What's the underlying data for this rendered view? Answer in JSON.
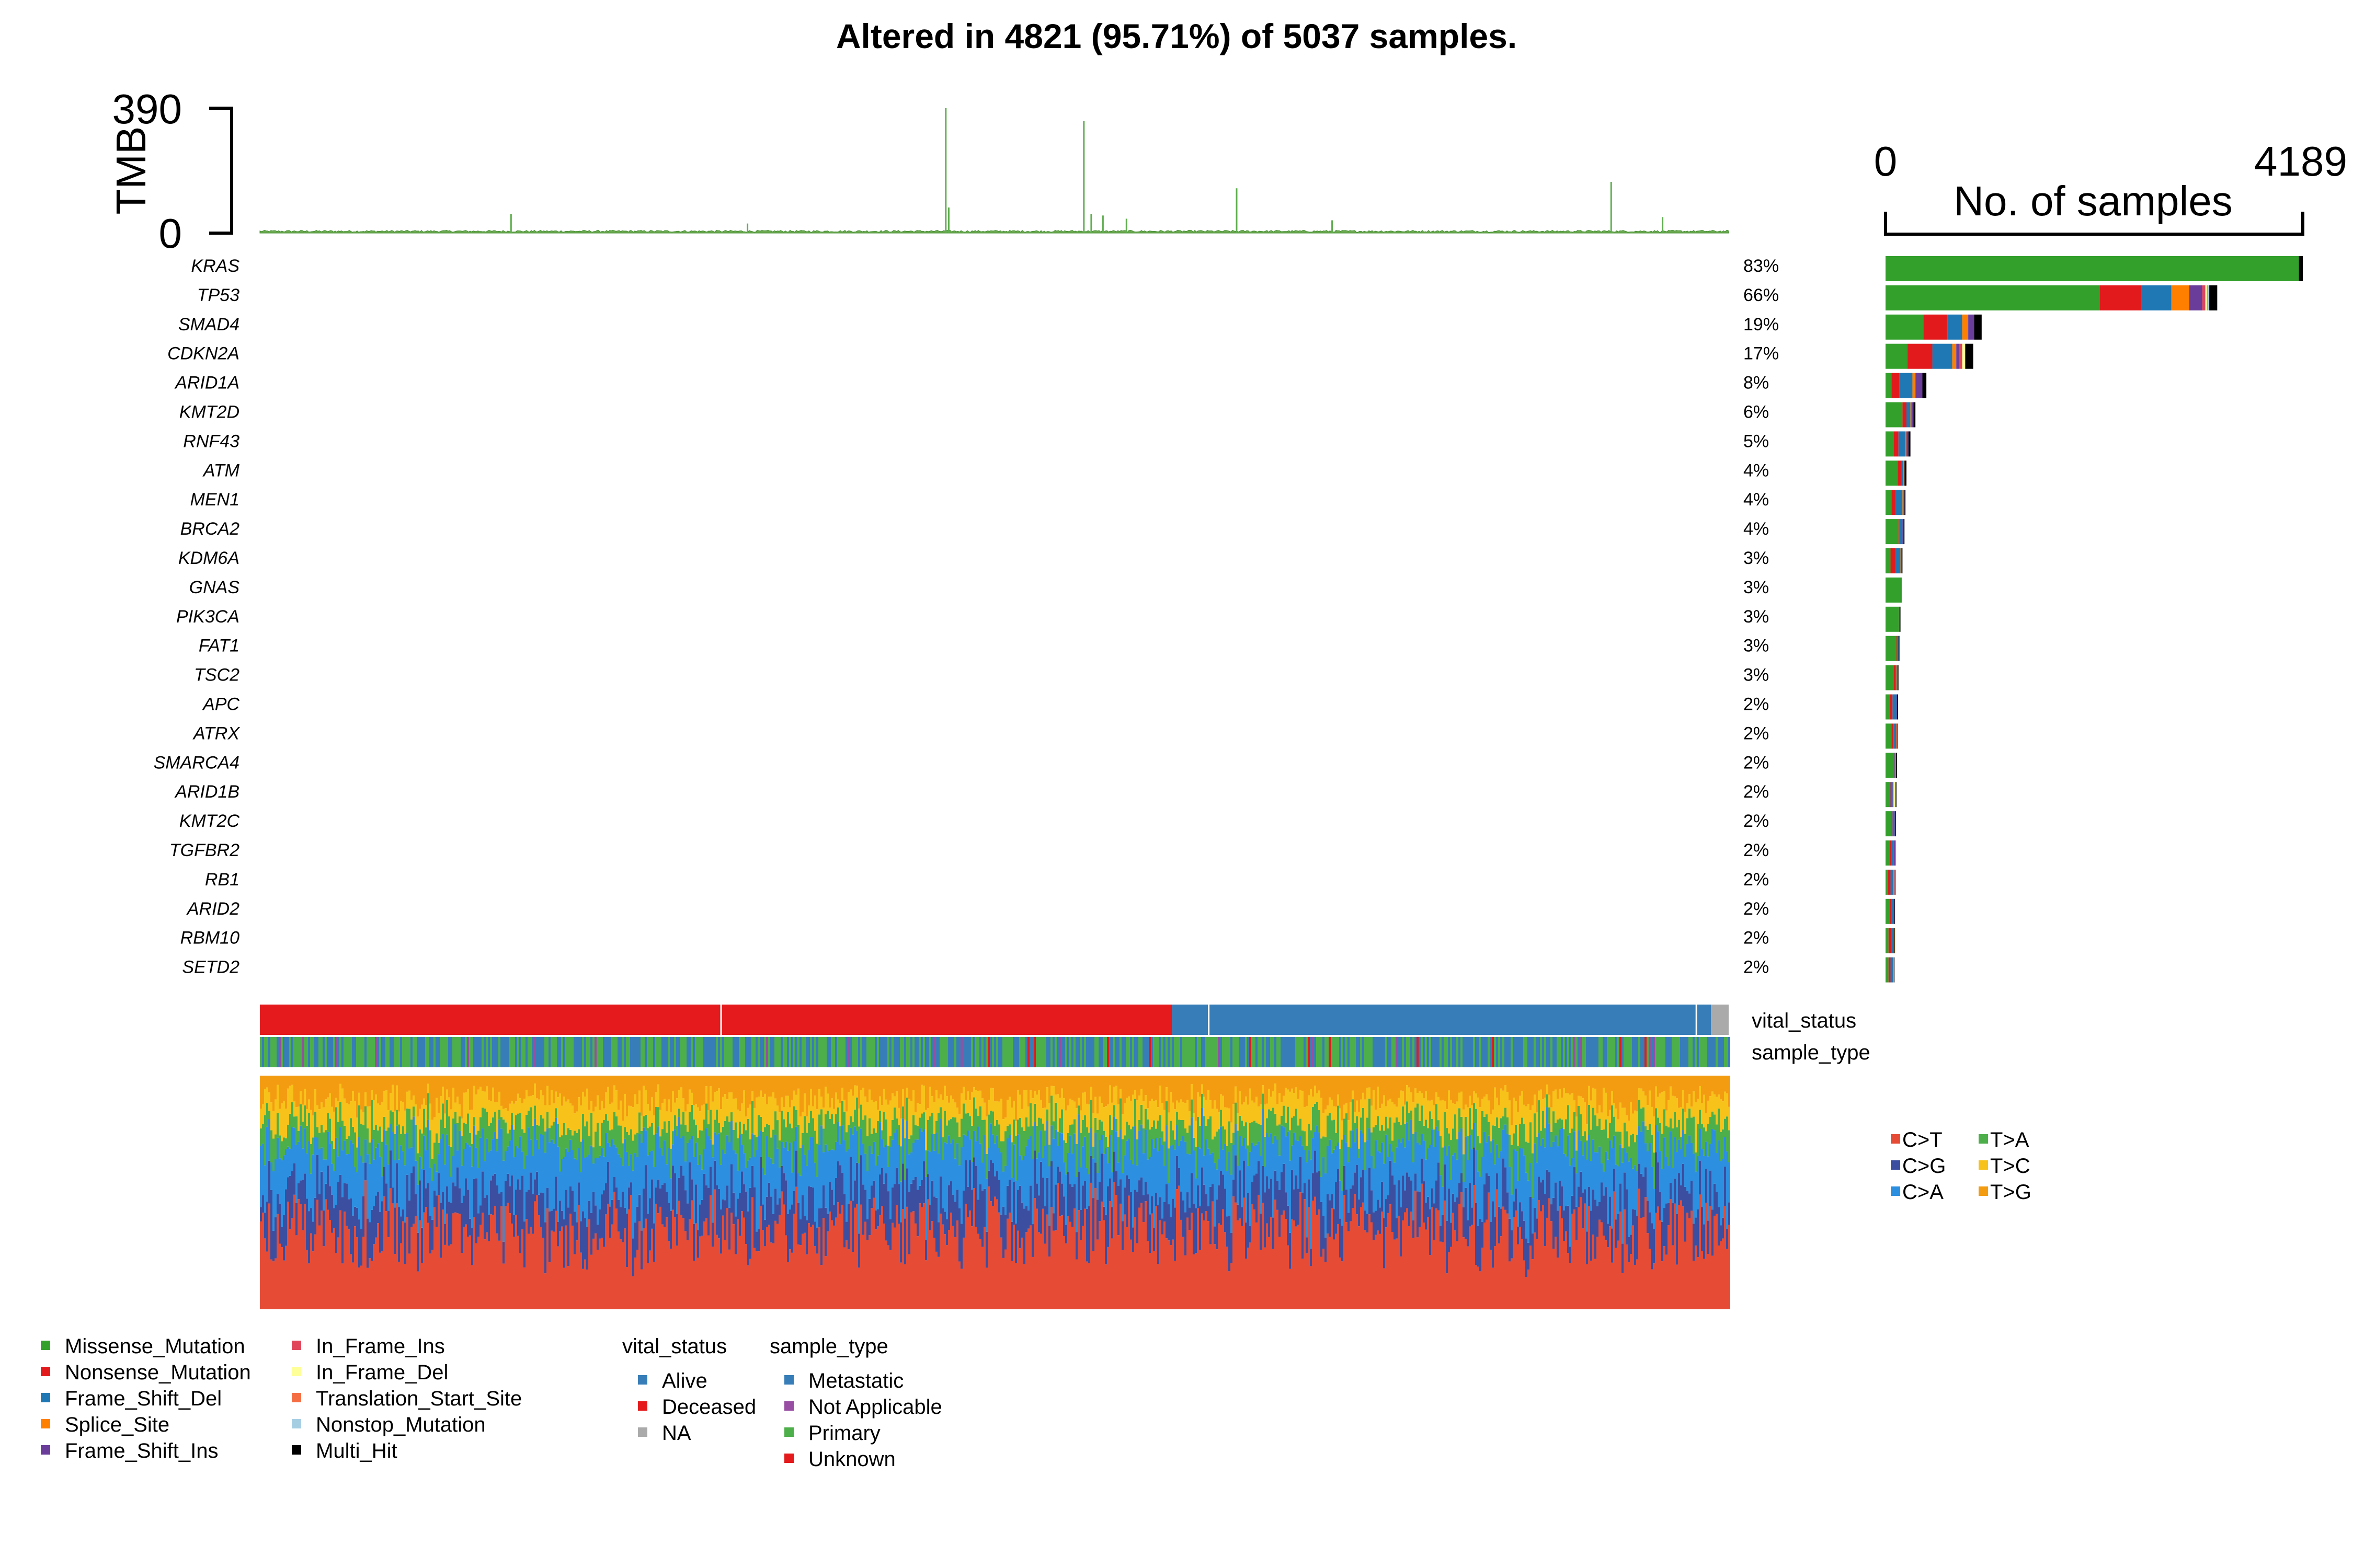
{
  "chart_data": {
    "type": "oncoplot",
    "title": "Altered in 4821 (95.71%) of 5037 samples.",
    "tmb_axis": {
      "label": "TMB",
      "min": 0,
      "max": 390,
      "tick_labels": [
        "0",
        "390"
      ]
    },
    "bar_axis": {
      "label": "No. of samples",
      "min": 0,
      "max": 4189,
      "tick_labels": [
        "0",
        "4189"
      ]
    },
    "genes": [
      {
        "name": "KRAS",
        "pct": "83%",
        "total": 4189,
        "counts": [
          4150,
          0,
          0,
          0,
          0,
          0,
          0,
          0,
          0,
          39
        ]
      },
      {
        "name": "TP53",
        "pct": "66%",
        "total": 3330,
        "counts": [
          2150,
          420,
          300,
          180,
          130,
          30,
          20,
          10,
          10,
          80
        ]
      },
      {
        "name": "SMAD4",
        "pct": "19%",
        "total": 965,
        "counts": [
          380,
          240,
          150,
          60,
          60,
          0,
          0,
          0,
          0,
          75
        ]
      },
      {
        "name": "CDKN2A",
        "pct": "17%",
        "total": 880,
        "counts": [
          220,
          250,
          200,
          40,
          30,
          30,
          30,
          0,
          0,
          80
        ]
      },
      {
        "name": "ARID1A",
        "pct": "8%",
        "total": 410,
        "counts": [
          60,
          80,
          130,
          30,
          70,
          0,
          0,
          0,
          0,
          40
        ]
      },
      {
        "name": "KMT2D",
        "pct": "6%",
        "total": 300,
        "counts": [
          170,
          40,
          40,
          10,
          20,
          0,
          0,
          0,
          0,
          20
        ]
      },
      {
        "name": "RNF43",
        "pct": "5%",
        "total": 250,
        "counts": [
          80,
          50,
          70,
          10,
          20,
          0,
          0,
          0,
          0,
          20
        ]
      },
      {
        "name": "ATM",
        "pct": "4%",
        "total": 210,
        "counts": [
          120,
          40,
          20,
          10,
          0,
          0,
          0,
          0,
          0,
          20
        ]
      },
      {
        "name": "MEN1",
        "pct": "4%",
        "total": 200,
        "counts": [
          60,
          40,
          70,
          10,
          10,
          0,
          0,
          0,
          0,
          10
        ]
      },
      {
        "name": "BRCA2",
        "pct": "4%",
        "total": 190,
        "counts": [
          130,
          10,
          30,
          0,
          10,
          0,
          0,
          0,
          0,
          10
        ]
      },
      {
        "name": "KDM6A",
        "pct": "3%",
        "total": 170,
        "counts": [
          50,
          50,
          50,
          10,
          0,
          0,
          0,
          0,
          0,
          10
        ]
      },
      {
        "name": "GNAS",
        "pct": "3%",
        "total": 160,
        "counts": [
          155,
          0,
          0,
          0,
          0,
          0,
          0,
          0,
          0,
          5
        ]
      },
      {
        "name": "PIK3CA",
        "pct": "3%",
        "total": 150,
        "counts": [
          135,
          0,
          0,
          0,
          0,
          5,
          0,
          0,
          0,
          10
        ]
      },
      {
        "name": "FAT1",
        "pct": "3%",
        "total": 140,
        "counts": [
          110,
          10,
          10,
          0,
          0,
          0,
          0,
          0,
          0,
          10
        ]
      },
      {
        "name": "TSC2",
        "pct": "3%",
        "total": 130,
        "counts": [
          80,
          20,
          10,
          10,
          0,
          0,
          0,
          0,
          0,
          10
        ]
      },
      {
        "name": "APC",
        "pct": "2%",
        "total": 125,
        "counts": [
          40,
          30,
          40,
          0,
          5,
          0,
          0,
          0,
          0,
          10
        ]
      },
      {
        "name": "ATRX",
        "pct": "2%",
        "total": 120,
        "counts": [
          60,
          20,
          25,
          5,
          5,
          0,
          0,
          0,
          0,
          5
        ]
      },
      {
        "name": "SMARCA4",
        "pct": "2%",
        "total": 115,
        "counts": [
          80,
          10,
          10,
          5,
          0,
          0,
          0,
          0,
          0,
          10
        ]
      },
      {
        "name": "ARID1B",
        "pct": "2%",
        "total": 110,
        "counts": [
          40,
          10,
          20,
          0,
          10,
          0,
          20,
          0,
          0,
          10
        ]
      },
      {
        "name": "KMT2C",
        "pct": "2%",
        "total": 105,
        "counts": [
          60,
          10,
          20,
          0,
          10,
          0,
          0,
          0,
          0,
          5
        ]
      },
      {
        "name": "TGFBR2",
        "pct": "2%",
        "total": 100,
        "counts": [
          40,
          20,
          20,
          0,
          15,
          0,
          0,
          0,
          0,
          5
        ]
      },
      {
        "name": "RB1",
        "pct": "2%",
        "total": 100,
        "counts": [
          20,
          30,
          30,
          10,
          5,
          0,
          0,
          0,
          0,
          5
        ]
      },
      {
        "name": "ARID2",
        "pct": "2%",
        "total": 95,
        "counts": [
          40,
          20,
          25,
          0,
          5,
          0,
          0,
          0,
          0,
          5
        ]
      },
      {
        "name": "RBM10",
        "pct": "2%",
        "total": 95,
        "counts": [
          30,
          30,
          25,
          5,
          0,
          0,
          0,
          0,
          0,
          5
        ]
      },
      {
        "name": "SETD2",
        "pct": "2%",
        "total": 90,
        "counts": [
          30,
          20,
          30,
          5,
          0,
          0,
          0,
          0,
          0,
          5
        ]
      }
    ],
    "variant_classes": [
      {
        "name": "Missense_Mutation",
        "color": "#33a02c"
      },
      {
        "name": "Nonsense_Mutation",
        "color": "#e31a1c"
      },
      {
        "name": "Frame_Shift_Del",
        "color": "#1f78b4"
      },
      {
        "name": "Splice_Site",
        "color": "#ff7f00"
      },
      {
        "name": "Frame_Shift_Ins",
        "color": "#6a3d9a"
      },
      {
        "name": "In_Frame_Ins",
        "color": "#e0455a"
      },
      {
        "name": "In_Frame_Del",
        "color": "#ffff99"
      },
      {
        "name": "Translation_Start_Site",
        "color": "#f46d43"
      },
      {
        "name": "Nonstop_Mutation",
        "color": "#a6cee3"
      },
      {
        "name": "Multi_Hit",
        "color": "#000000"
      }
    ],
    "tmb_peaks": [
      {
        "sample_fraction": 0.467,
        "value": 390
      },
      {
        "sample_fraction": 0.469,
        "value": 80
      },
      {
        "sample_fraction": 0.561,
        "value": 350
      },
      {
        "sample_fraction": 0.566,
        "value": 60
      },
      {
        "sample_fraction": 0.574,
        "value": 55
      },
      {
        "sample_fraction": 0.59,
        "value": 45
      },
      {
        "sample_fraction": 0.665,
        "value": 140
      },
      {
        "sample_fraction": 0.171,
        "value": 60
      },
      {
        "sample_fraction": 0.92,
        "value": 160
      },
      {
        "sample_fraction": 0.955,
        "value": 50
      },
      {
        "sample_fraction": 0.73,
        "value": 40
      },
      {
        "sample_fraction": 0.332,
        "value": 30
      }
    ],
    "vital_status": {
      "label": "vital_status",
      "categories": [
        {
          "name": "Alive",
          "color": "#377eb8"
        },
        {
          "name": "Deceased",
          "color": "#e41a1c"
        },
        {
          "name": "NA",
          "color": "#aaaaaa"
        }
      ],
      "segments": [
        {
          "category": "Deceased",
          "fraction": 0.621
        },
        {
          "category": "Alive",
          "fraction": 0.367
        },
        {
          "category": "NA",
          "fraction": 0.012
        }
      ]
    },
    "sample_type": {
      "label": "sample_type",
      "categories": [
        {
          "name": "Metastatic",
          "color": "#377eb8"
        },
        {
          "name": "Not Applicable",
          "color": "#984ea3"
        },
        {
          "name": "Primary",
          "color": "#4daf4a"
        },
        {
          "name": "Unknown",
          "color": "#e41a1c"
        }
      ],
      "approx_fractions": [
        0.45,
        0.03,
        0.5,
        0.02
      ]
    },
    "titv": {
      "categories": [
        {
          "name": "C>T",
          "color": "#e64b35"
        },
        {
          "name": "C>G",
          "color": "#3c4ea0"
        },
        {
          "name": "C>A",
          "color": "#2d8fe0"
        },
        {
          "name": "T>A",
          "color": "#4daf4a"
        },
        {
          "name": "T>C",
          "color": "#f7c31a"
        },
        {
          "name": "T>G",
          "color": "#f39c12"
        }
      ],
      "approx_mean_fractions": [
        0.35,
        0.15,
        0.2,
        0.1,
        0.1,
        0.1
      ]
    },
    "total_samples": 5037,
    "altered_samples": 4821
  }
}
